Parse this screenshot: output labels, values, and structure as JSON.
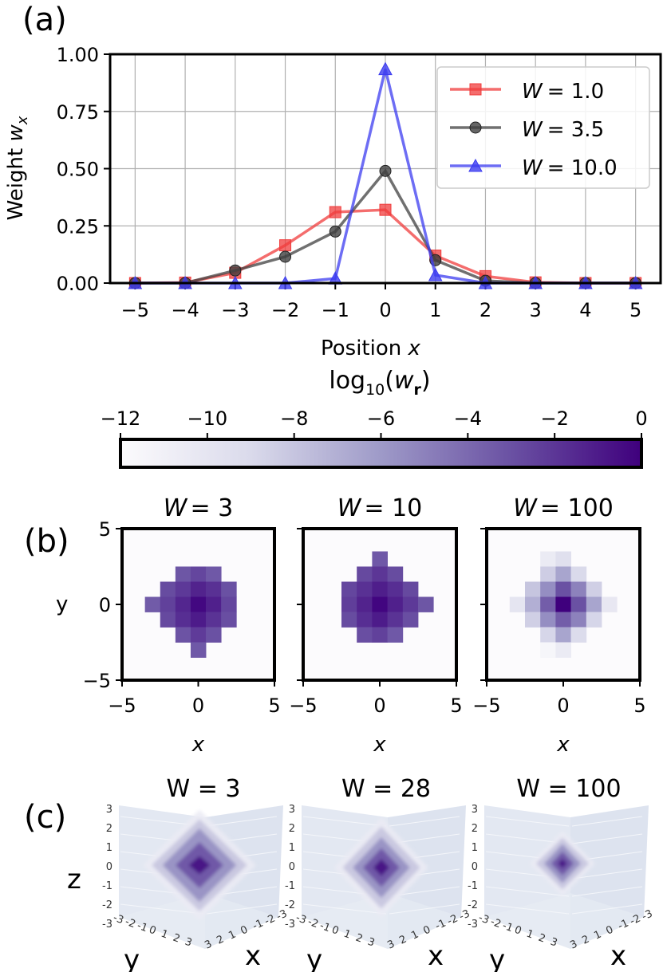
{
  "panel_labels": {
    "a": "(a)",
    "b": "(b)",
    "c": "(c)"
  },
  "chart_data": [
    {
      "type": "line",
      "panel": "(a)",
      "xlabel": "Position x",
      "ylabel": "Weight w_x",
      "xlabel_parts": {
        "word": "Position ",
        "var": "x"
      },
      "ylabel_parts": {
        "word": "Weight ",
        "var": "w",
        "sub": "x"
      },
      "xlim": [
        -5.5,
        5.5
      ],
      "ylim": [
        0,
        1.0
      ],
      "x": [
        -5,
        -4,
        -3,
        -2,
        -1,
        0,
        1,
        2,
        3,
        4,
        5
      ],
      "x_tick_labels": [
        "−5",
        "−4",
        "−3",
        "−2",
        "−1",
        "0",
        "1",
        "2",
        "3",
        "4",
        "5"
      ],
      "y_ticks": [
        0,
        0.25,
        0.5,
        0.75,
        1.0
      ],
      "y_tick_labels": [
        "0.00",
        "0.25",
        "0.50",
        "0.75",
        "1.00"
      ],
      "grid": true,
      "legend_position": "top-right",
      "series": [
        {
          "name": "W = 1.0",
          "legend_var": "W",
          "legend_val": "= 1.0",
          "color": "#f03c3c",
          "marker": "square",
          "values": [
            0.0,
            0.002,
            0.045,
            0.165,
            0.31,
            0.32,
            0.12,
            0.03,
            0.003,
            0.0,
            0.0
          ]
        },
        {
          "name": "W = 3.5",
          "legend_var": "W",
          "legend_val": "= 3.5",
          "color": "#404040",
          "marker": "circle",
          "values": [
            0.0,
            0.0,
            0.055,
            0.115,
            0.225,
            0.49,
            0.1,
            0.01,
            0.0,
            0.0,
            0.0
          ]
        },
        {
          "name": "W = 10.0",
          "legend_var": "W",
          "legend_val": "= 10.0",
          "color": "#3c3cf0",
          "marker": "triangle",
          "values": [
            0.0,
            0.0,
            0.0,
            0.0,
            0.02,
            0.935,
            0.035,
            0.0,
            0.0,
            0.0,
            0.0
          ]
        }
      ]
    },
    {
      "type": "colorbar",
      "title": "log10(w_r)",
      "title_parts": {
        "main": "log",
        "sub": "10",
        "open": "(",
        "var": "w",
        "subvar": "r",
        "close": ")"
      },
      "range": [
        -12,
        0
      ],
      "ticks": [
        -12,
        -10,
        -8,
        -6,
        -4,
        -2,
        0
      ],
      "tick_labels": [
        "−12",
        "−10",
        "−8",
        "−6",
        "−4",
        "−2",
        "0"
      ],
      "colormap": "Purples",
      "color_low": "#fcfbfd",
      "color_high": "#3f007d"
    },
    {
      "type": "heatmap",
      "panel": "(b)",
      "xlabel": "x",
      "ylabel": "y",
      "xlim": [
        -5,
        5
      ],
      "ylim": [
        -5,
        5
      ],
      "x_tick_labels": [
        "−5",
        "0",
        "5"
      ],
      "y_tick_labels": [
        "5",
        "0",
        "−5"
      ],
      "value_units": "log10(w_r)",
      "plots": [
        {
          "title_var": "W",
          "title_val": "= 3",
          "cells": [
            {
              "x": -1,
              "y": 2,
              "v": -3.2
            },
            {
              "x": 0,
              "y": 2,
              "v": -2.6
            },
            {
              "x": 1,
              "y": 2,
              "v": -3.3
            },
            {
              "x": -2,
              "y": 1,
              "v": -2.8
            },
            {
              "x": -1,
              "y": 1,
              "v": -2.1
            },
            {
              "x": 0,
              "y": 1,
              "v": -1.3
            },
            {
              "x": 1,
              "y": 1,
              "v": -1.8
            },
            {
              "x": 2,
              "y": 1,
              "v": -3.0
            },
            {
              "x": -3,
              "y": 0,
              "v": -3.4
            },
            {
              "x": -2,
              "y": 0,
              "v": -2.4
            },
            {
              "x": -1,
              "y": 0,
              "v": -1.4
            },
            {
              "x": 0,
              "y": 0,
              "v": -0.3
            },
            {
              "x": 1,
              "y": 0,
              "v": -1.2
            },
            {
              "x": 2,
              "y": 0,
              "v": -2.6
            },
            {
              "x": -2,
              "y": -1,
              "v": -2.7
            },
            {
              "x": -1,
              "y": -1,
              "v": -1.7
            },
            {
              "x": 0,
              "y": -1,
              "v": -1.0
            },
            {
              "x": 1,
              "y": -1,
              "v": -1.9
            },
            {
              "x": 2,
              "y": -1,
              "v": -2.9
            },
            {
              "x": -1,
              "y": -2,
              "v": -3.1
            },
            {
              "x": 0,
              "y": -2,
              "v": -2.2
            },
            {
              "x": 1,
              "y": -2,
              "v": -3.0
            },
            {
              "x": 0,
              "y": -3,
              "v": -3.3
            }
          ]
        },
        {
          "title_var": "W",
          "title_val": "= 10",
          "cells": [
            {
              "x": 0,
              "y": 3,
              "v": -3.3
            },
            {
              "x": -1,
              "y": 2,
              "v": -2.7
            },
            {
              "x": 0,
              "y": 2,
              "v": -2.0
            },
            {
              "x": 1,
              "y": 2,
              "v": -2.8
            },
            {
              "x": -2,
              "y": 1,
              "v": -2.6
            },
            {
              "x": -1,
              "y": 1,
              "v": -1.8
            },
            {
              "x": 0,
              "y": 1,
              "v": -1.1
            },
            {
              "x": 1,
              "y": 1,
              "v": -1.7
            },
            {
              "x": 2,
              "y": 1,
              "v": -2.7
            },
            {
              "x": -2,
              "y": 0,
              "v": -2.3
            },
            {
              "x": -1,
              "y": 0,
              "v": -1.3
            },
            {
              "x": 0,
              "y": 0,
              "v": -0.2
            },
            {
              "x": 1,
              "y": 0,
              "v": -1.2
            },
            {
              "x": 2,
              "y": 0,
              "v": -2.1
            },
            {
              "x": 3,
              "y": 0,
              "v": -3.2
            },
            {
              "x": -2,
              "y": -1,
              "v": -2.8
            },
            {
              "x": -1,
              "y": -1,
              "v": -1.7
            },
            {
              "x": 0,
              "y": -1,
              "v": -1.0
            },
            {
              "x": 1,
              "y": -1,
              "v": -1.9
            },
            {
              "x": 2,
              "y": -1,
              "v": -2.9
            },
            {
              "x": -1,
              "y": -2,
              "v": -2.9
            },
            {
              "x": 0,
              "y": -2,
              "v": -2.4
            },
            {
              "x": 1,
              "y": -2,
              "v": -3.3
            }
          ]
        },
        {
          "title_var": "W",
          "title_val": "= 100",
          "cells": [
            {
              "x": -1,
              "y": 3,
              "v": -10.5
            },
            {
              "x": 0,
              "y": 3,
              "v": -9.5
            },
            {
              "x": -1,
              "y": 2,
              "v": -8.4
            },
            {
              "x": 0,
              "y": 2,
              "v": -6.5
            },
            {
              "x": 1,
              "y": 2,
              "v": -9.0
            },
            {
              "x": -2,
              "y": 1,
              "v": -8.0
            },
            {
              "x": -1,
              "y": 1,
              "v": -5.5
            },
            {
              "x": 0,
              "y": 1,
              "v": -3.0
            },
            {
              "x": 1,
              "y": 1,
              "v": -5.0
            },
            {
              "x": 2,
              "y": 1,
              "v": -8.5
            },
            {
              "x": -3,
              "y": 0,
              "v": -10.0
            },
            {
              "x": -2,
              "y": 0,
              "v": -7.0
            },
            {
              "x": -1,
              "y": 0,
              "v": -3.5
            },
            {
              "x": 0,
              "y": 0,
              "v": 0
            },
            {
              "x": 1,
              "y": 0,
              "v": -3.0
            },
            {
              "x": 2,
              "y": 0,
              "v": -6.5
            },
            {
              "x": 3,
              "y": 0,
              "v": -10.2
            },
            {
              "x": -2,
              "y": -1,
              "v": -8.5
            },
            {
              "x": -1,
              "y": -1,
              "v": -5.5
            },
            {
              "x": 0,
              "y": -1,
              "v": -3.5
            },
            {
              "x": 1,
              "y": -1,
              "v": -5.0
            },
            {
              "x": 2,
              "y": -1,
              "v": -8.8
            },
            {
              "x": -1,
              "y": -2,
              "v": -8.8
            },
            {
              "x": 0,
              "y": -2,
              "v": -6.5
            },
            {
              "x": 1,
              "y": -2,
              "v": -9.2
            },
            {
              "x": -1,
              "y": -3,
              "v": -11.5
            },
            {
              "x": 0,
              "y": -3,
              "v": -10.5
            }
          ]
        }
      ]
    },
    {
      "type": "3d-isosurface",
      "panel": "(c)",
      "zlabel": "z",
      "ylabel": "y",
      "xlabel": "x",
      "z_ticks": [
        "3",
        "2",
        "1",
        "0",
        "-1",
        "-2",
        "-3"
      ],
      "y_ticks": [
        "-3",
        "-2",
        "-1",
        "0",
        "1",
        "2",
        "3"
      ],
      "x_ticks": [
        "3",
        "2",
        "1",
        "0",
        "-1",
        "-2",
        "-3"
      ],
      "plots": [
        {
          "title": "W = 3",
          "levels": [
            {
              "v": -10.5,
              "rx": 2.6,
              "ry": 2.4
            },
            {
              "v": -8.0,
              "rx": 2.2,
              "ry": 2.0
            },
            {
              "v": -5.5,
              "rx": 1.7,
              "ry": 1.6
            },
            {
              "v": -3.0,
              "rx": 1.1,
              "ry": 1.0
            },
            {
              "v": -0.5,
              "rx": 0.5,
              "ry": 0.4
            }
          ]
        },
        {
          "title": "W = 28",
          "levels": [
            {
              "v": -10.5,
              "rx": 2.3,
              "ry": 2.3
            },
            {
              "v": -8.0,
              "rx": 1.9,
              "ry": 1.9
            },
            {
              "v": -5.5,
              "rx": 1.4,
              "ry": 1.4
            },
            {
              "v": -3.0,
              "rx": 0.9,
              "ry": 0.9
            },
            {
              "v": -0.5,
              "rx": 0.4,
              "ry": 0.4
            }
          ]
        },
        {
          "title": "W = 100",
          "levels": [
            {
              "v": -10.5,
              "rx": 1.6,
              "ry": 1.5
            },
            {
              "v": -8.0,
              "rx": 1.3,
              "ry": 1.2
            },
            {
              "v": -5.5,
              "rx": 0.9,
              "ry": 0.9
            },
            {
              "v": -3.0,
              "rx": 0.55,
              "ry": 0.55
            },
            {
              "v": -0.5,
              "rx": 0.22,
              "ry": 0.22
            }
          ]
        }
      ]
    }
  ]
}
